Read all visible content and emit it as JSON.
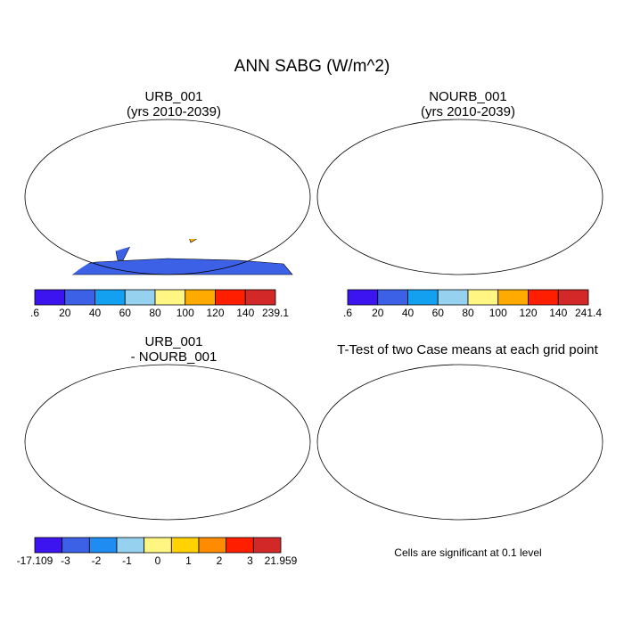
{
  "title": "ANN SABG (W/m^2)",
  "panels": {
    "urb": {
      "title_line1": "URB_001",
      "title_line2": "(yrs 2010-2039)",
      "colorbar_labels": [
        ".6",
        "20",
        "40",
        "60",
        "80",
        "100",
        "120",
        "140",
        "239.1"
      ]
    },
    "nourb": {
      "title_line1": "NOURB_001",
      "title_line2": "(yrs 2010-2039)",
      "colorbar_labels": [
        ".6",
        "20",
        "40",
        "60",
        "80",
        "100",
        "120",
        "140",
        "241.4"
      ]
    },
    "diff": {
      "title_line1": "URB_001",
      "title_line2": "- NOURB_001",
      "colorbar_labels": [
        "-17.109",
        "-3",
        "-2",
        "-1",
        "0",
        "1",
        "2",
        "3",
        "21.959"
      ]
    },
    "ttest": {
      "title": "T-Test of two Case means at each grid point",
      "footnote": "Cells are significant at 0.1 level"
    }
  },
  "colors": {
    "abs_scale": [
      "#3c14f0",
      "#3c60e6",
      "#14a0f0",
      "#96d2f0",
      "#fff582",
      "#ffaa00",
      "#ff1e00",
      "#d22828"
    ],
    "diff_scale": [
      "#3c14f0",
      "#3c60e6",
      "#1e8cf0",
      "#96d2f0",
      "#fff582",
      "#ffd200",
      "#ff8c00",
      "#ff1e00",
      "#d22828"
    ],
    "significance": "#e60000"
  }
}
